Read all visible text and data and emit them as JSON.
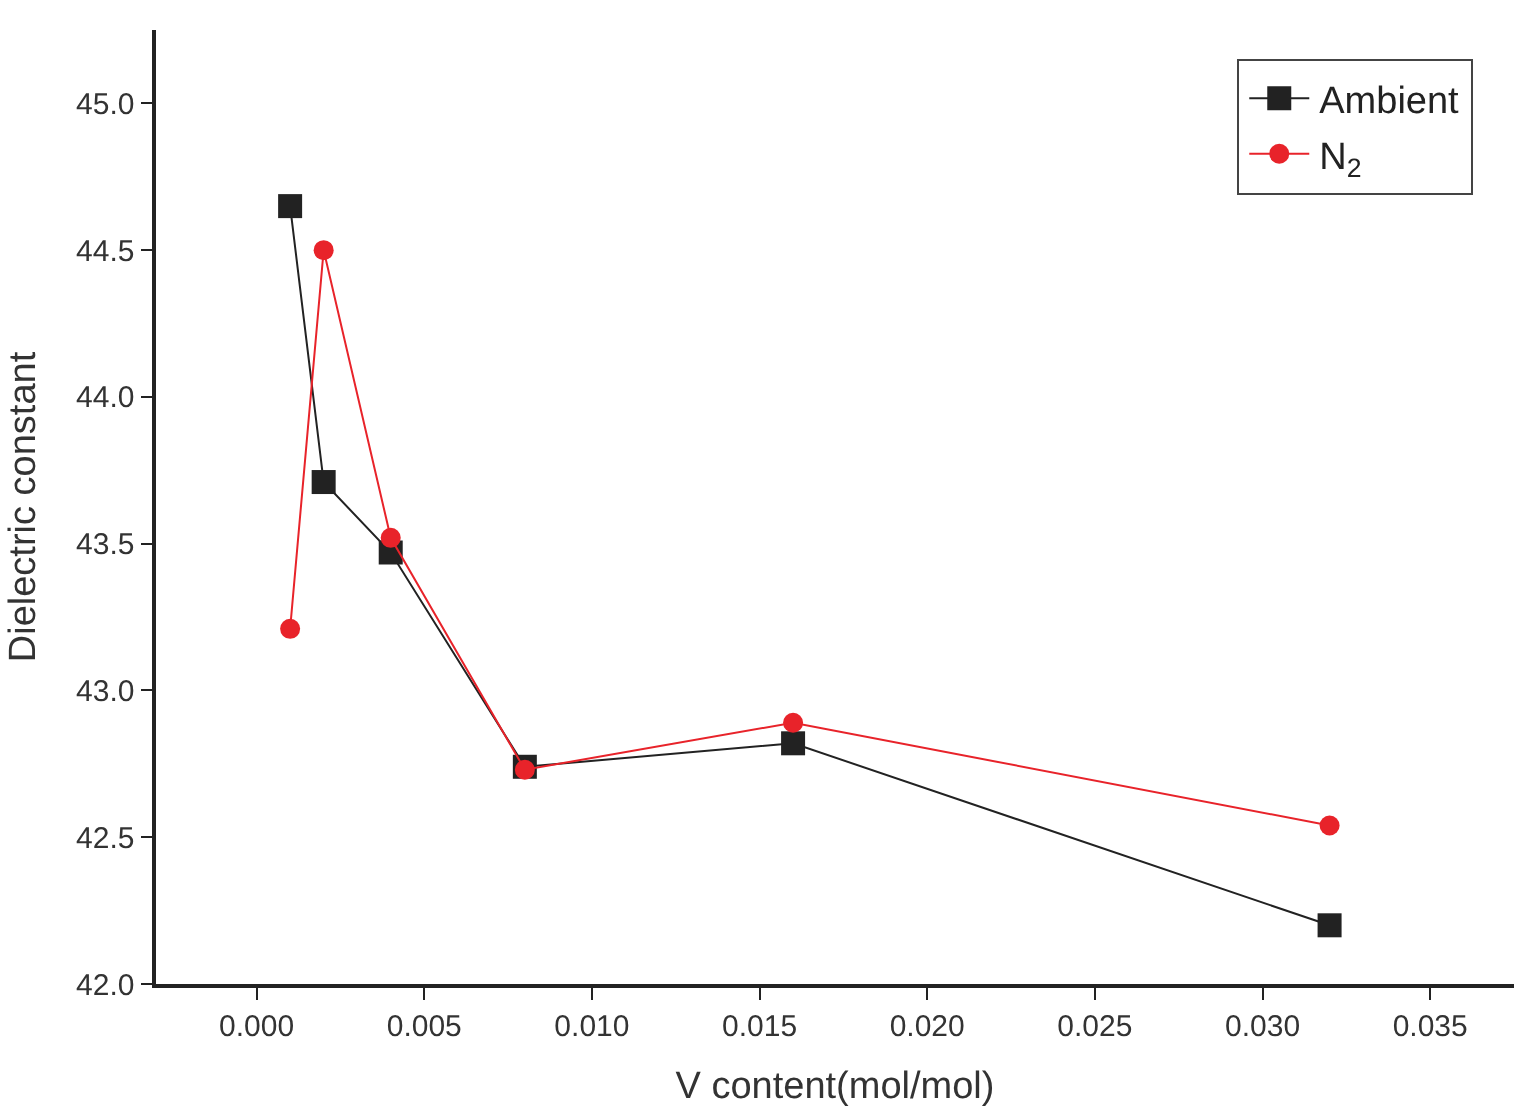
{
  "chart_data": {
    "type": "line",
    "xlabel": "V content(mol/mol)",
    "ylabel": "Dielectric constant",
    "x": [
      0.001,
      0.002,
      0.004,
      0.008,
      0.016,
      0.032
    ],
    "series": [
      {
        "name": "Ambient",
        "color": "#222222",
        "marker": "square",
        "values": [
          44.65,
          43.71,
          43.47,
          42.74,
          42.82,
          42.2
        ]
      },
      {
        "name": "N$_{2}$",
        "color": "#e8232a",
        "marker": "circle",
        "values": [
          43.21,
          44.5,
          43.52,
          42.73,
          42.89,
          42.54
        ]
      }
    ],
    "xlim": [
      -0.003,
      0.0375
    ],
    "xticks": [
      {
        "value": 0,
        "label": "0.000"
      },
      0.005,
      {
        "value": 0.01,
        "label": "0.010"
      },
      0.015,
      {
        "value": 0.02,
        "label": "0.020"
      },
      0.025,
      {
        "value": 0.03,
        "label": "0.030"
      },
      0.035
    ],
    "ylim": [
      42.0,
      45.25
    ],
    "yticks": [
      {
        "value": 42,
        "label": "42.0"
      },
      42.5,
      {
        "value": 43,
        "label": "43.0"
      },
      43.5,
      {
        "value": 44,
        "label": "44.0"
      },
      44.5,
      {
        "value": 45,
        "label": "45.0"
      }
    ],
    "legend": "top right",
    "line_style": "solid"
  }
}
